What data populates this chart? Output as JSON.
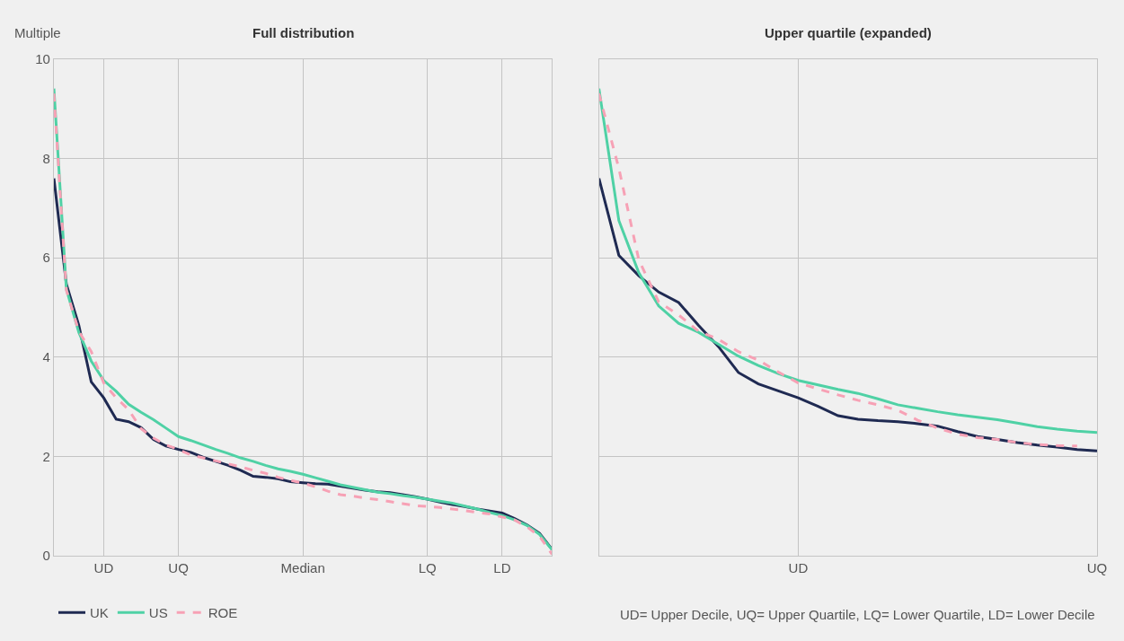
{
  "chart_data": [
    {
      "type": "line",
      "title": "Full distribution",
      "ylabel": "Multiple",
      "ylim": [
        0,
        10
      ],
      "categories": [
        null,
        null,
        null,
        null,
        "UD",
        null,
        null,
        null,
        null,
        null,
        "UQ",
        null,
        null,
        null,
        null,
        null,
        null,
        null,
        null,
        null,
        "Median",
        null,
        null,
        null,
        null,
        null,
        null,
        null,
        null,
        null,
        "LQ",
        null,
        null,
        null,
        null,
        null,
        "LD",
        null,
        null,
        null,
        null
      ],
      "yticks": [
        0,
        2,
        4,
        6,
        8,
        10
      ],
      "grid": true,
      "legend": "bottom left",
      "marker": "none",
      "series": [
        {
          "name": "UK",
          "color": "#1f2a52",
          "line_style": "solid",
          "values": [
            7.6,
            5.47,
            4.64,
            3.5,
            3.18,
            2.75,
            2.7,
            2.58,
            2.34,
            2.21,
            2.14,
            2.08,
            1.98,
            1.9,
            1.82,
            1.72,
            1.6,
            1.58,
            1.55,
            1.49,
            1.47,
            1.45,
            1.44,
            1.4,
            1.36,
            1.32,
            1.29,
            1.27,
            1.23,
            1.19,
            1.14,
            1.08,
            1.03,
            0.99,
            0.94,
            0.9,
            0.86,
            0.75,
            0.62,
            0.45,
            0.13
          ]
        },
        {
          "name": "US",
          "color": "#4fd1a5",
          "line_style": "solid",
          "values": [
            9.41,
            5.37,
            4.5,
            3.92,
            3.53,
            3.31,
            3.05,
            2.89,
            2.74,
            2.57,
            2.4,
            2.32,
            2.23,
            2.14,
            2.06,
            1.97,
            1.9,
            1.82,
            1.75,
            1.7,
            1.64,
            1.57,
            1.5,
            1.43,
            1.38,
            1.33,
            1.28,
            1.25,
            1.21,
            1.18,
            1.14,
            1.1,
            1.06,
            1.0,
            0.94,
            0.87,
            0.81,
            0.72,
            0.61,
            0.43,
            0.12
          ]
        },
        {
          "name": "ROE",
          "color": "#f7a1b5",
          "line_style": "dashed",
          "values": [
            9.31,
            5.35,
            4.52,
            4.11,
            3.48,
            3.18,
            2.94,
            2.56,
            2.37,
            2.23,
            2.14,
            2.03,
            1.97,
            1.91,
            1.85,
            1.79,
            1.72,
            1.66,
            1.58,
            1.52,
            1.46,
            1.39,
            1.3,
            1.23,
            1.2,
            1.16,
            1.13,
            1.09,
            1.05,
            1.01,
            0.99,
            0.97,
            0.94,
            0.91,
            0.87,
            0.84,
            0.78,
            0.72,
            0.58,
            0.39,
            0.03
          ]
        }
      ]
    },
    {
      "type": "line",
      "title": "Upper quartile (expanded)",
      "ylim": [
        0,
        10
      ],
      "categories": [
        null,
        null,
        null,
        null,
        null,
        null,
        null,
        null,
        null,
        null,
        "UD",
        null,
        null,
        null,
        null,
        null,
        null,
        null,
        null,
        null,
        null,
        null,
        null,
        null,
        null,
        "UQ"
      ],
      "yticks": [
        0,
        2,
        4,
        6,
        8,
        10
      ],
      "grid": true,
      "tick_labels": "x",
      "marker": "none",
      "annotations": [
        "UD= Upper Decile, UQ= Upper Quartile, LQ= Lower Quartile, LD= Lower Decile"
      ],
      "series": [
        {
          "color": "#1f2a52",
          "line_style": "solid",
          "values": [
            7.6,
            6.05,
            5.64,
            5.31,
            5.1,
            4.64,
            4.21,
            3.69,
            3.46,
            3.32,
            3.18,
            3.01,
            2.82,
            2.75,
            2.72,
            2.7,
            2.66,
            2.61,
            2.5,
            2.4,
            2.34,
            2.28,
            2.23,
            2.19,
            2.14,
            2.11
          ]
        },
        {
          "color": "#4fd1a5",
          "line_style": "solid",
          "values": [
            9.41,
            6.75,
            5.7,
            5.03,
            4.68,
            4.5,
            4.26,
            4.02,
            3.83,
            3.67,
            3.53,
            3.44,
            3.35,
            3.27,
            3.16,
            3.04,
            2.97,
            2.9,
            2.84,
            2.79,
            2.74,
            2.67,
            2.6,
            2.55,
            2.51,
            2.48
          ]
        },
        {
          "color": "#f7a1b5",
          "line_style": "dashed",
          "values": [
            9.31,
            7.8,
            5.96,
            5.11,
            4.85,
            4.52,
            4.36,
            4.11,
            3.94,
            3.7,
            3.48,
            3.36,
            3.24,
            3.13,
            3.04,
            2.93,
            2.73,
            2.57,
            2.45,
            2.38,
            2.34,
            2.28,
            2.24,
            2.22,
            2.21,
            null
          ]
        }
      ]
    }
  ]
}
